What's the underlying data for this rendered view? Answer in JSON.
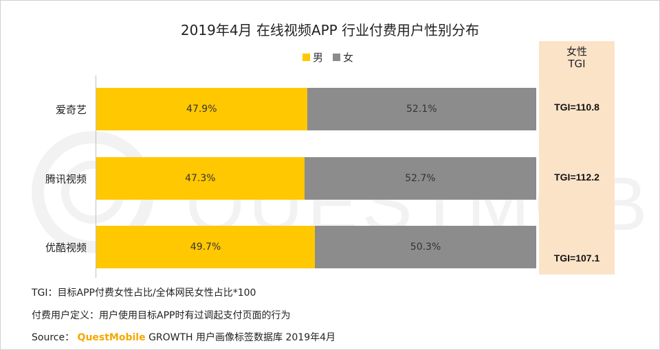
{
  "chart_data": {
    "type": "bar",
    "orientation": "horizontal",
    "stacked": true,
    "title": "2019年4月 在线视频APP 行业付费用户性别分布",
    "categories": [
      "爱奇艺",
      "腾讯视频",
      "优酷视频"
    ],
    "series": [
      {
        "name": "男",
        "values": [
          47.9,
          47.3,
          49.7
        ],
        "labels": [
          "47.9%",
          "47.3%",
          "49.7%"
        ],
        "color": "#ffc800"
      },
      {
        "name": "女",
        "values": [
          52.1,
          52.7,
          50.3
        ],
        "labels": [
          "52.1%",
          "52.7%",
          "50.3%"
        ],
        "color": "#8c8c8c"
      }
    ],
    "xlim": [
      0,
      100
    ],
    "legend_position": "top-center",
    "grid": false,
    "tgi_column": {
      "header_line1": "女性",
      "header_line2": "TGI",
      "values": [
        "TGI=110.8",
        "TGI=112.2",
        "TGI=107.1"
      ],
      "background": "#fbe3c8"
    }
  },
  "notes": {
    "tgi_definition": "TGI：目标APP付费女性占比/全体网民女性占比*100",
    "paying_user_definition": "付费用户定义：用户使用目标APP时有过调起支付页面的行为",
    "source_prefix": "Source：",
    "source_brand": "QuestMobile",
    "source_rest": "GROWTH 用户画像标签数据库 2019年4月"
  },
  "watermark_text": "QUESTMOBILE"
}
